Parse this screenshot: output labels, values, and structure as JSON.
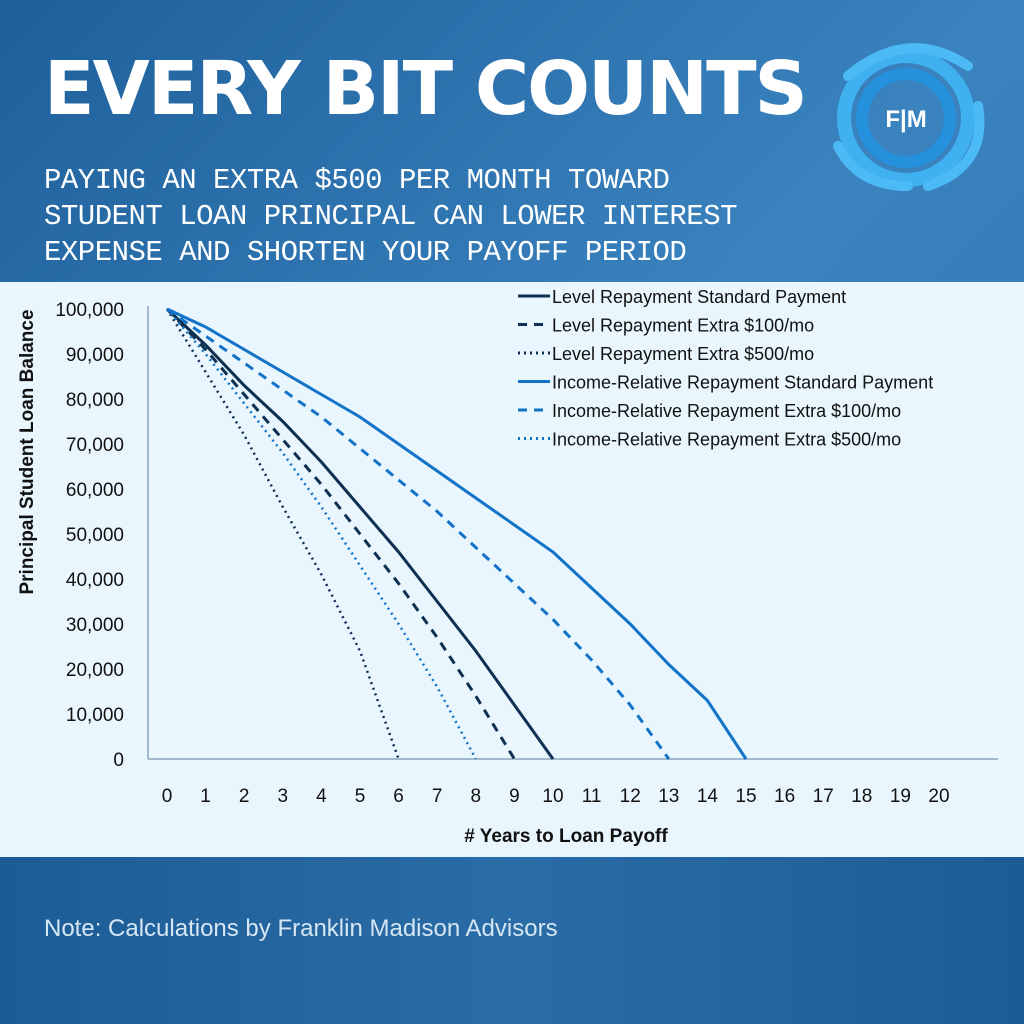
{
  "header": {
    "title": "EVERY BIT COUNTS",
    "subtitle_lines": [
      "PAYING AN EXTRA $500 PER MONTH TOWARD",
      "STUDENT LOAN PRINCIPAL CAN LOWER INTEREST",
      "EXPENSE AND SHORTEN YOUR PAYOFF PERIOD"
    ],
    "logo_text": "F|M"
  },
  "footer": {
    "note": "Note:  Calculations by Franklin Madison Advisors"
  },
  "chart_data": {
    "type": "line",
    "xlabel": "# Years to Loan Payoff",
    "ylabel": "Principal Student Loan Balance",
    "xlim": [
      0,
      21
    ],
    "ylim": [
      0,
      100000
    ],
    "x_ticks": [
      "0",
      "1",
      "2",
      "3",
      "4",
      "5",
      "6",
      "7",
      "8",
      "9",
      "10",
      "11",
      "12",
      "13",
      "14",
      "15",
      "16",
      "17",
      "18",
      "19",
      "20"
    ],
    "y_ticks": [
      "0",
      "10,000",
      "20,000",
      "30,000",
      "40,000",
      "50,000",
      "60,000",
      "70,000",
      "80,000",
      "90,000",
      "100,000"
    ],
    "legend_position": "top-right",
    "series": [
      {
        "name": "Level Repayment Standard Payment",
        "color": "#0d2f52",
        "style": "solid",
        "values": [
          100000,
          92000,
          83000,
          75000,
          66000,
          56000,
          46000,
          35000,
          24000,
          12000,
          0
        ]
      },
      {
        "name": "Level Repayment Extra $100/mo",
        "color": "#0d2f52",
        "style": "dashed",
        "values": [
          100000,
          91000,
          81000,
          71000,
          61000,
          50000,
          39000,
          27000,
          14000,
          0
        ]
      },
      {
        "name": "Level Repayment Extra $500/mo",
        "color": "#0d2f52",
        "style": "dotted",
        "values": [
          100000,
          86000,
          72000,
          56000,
          41000,
          24000,
          0
        ]
      },
      {
        "name": "Income-Relative Repayment Standard Payment",
        "color": "#1273c8",
        "style": "solid",
        "values": [
          100000,
          96000,
          91000,
          86000,
          81000,
          76000,
          70000,
          64000,
          58000,
          52000,
          46000,
          38000,
          30000,
          21000,
          13000,
          0
        ]
      },
      {
        "name": "Income-Relative Repayment Extra $100/mo",
        "color": "#1273c8",
        "style": "dashed",
        "values": [
          100000,
          94000,
          88000,
          82000,
          76000,
          69000,
          62000,
          55000,
          47000,
          39000,
          31000,
          22000,
          12000,
          0
        ]
      },
      {
        "name": "Income-Relative Repayment Extra $500/mo",
        "color": "#1273c8",
        "style": "dotted",
        "values": [
          100000,
          90000,
          79000,
          68000,
          56000,
          43000,
          30000,
          16000,
          0
        ]
      }
    ]
  }
}
